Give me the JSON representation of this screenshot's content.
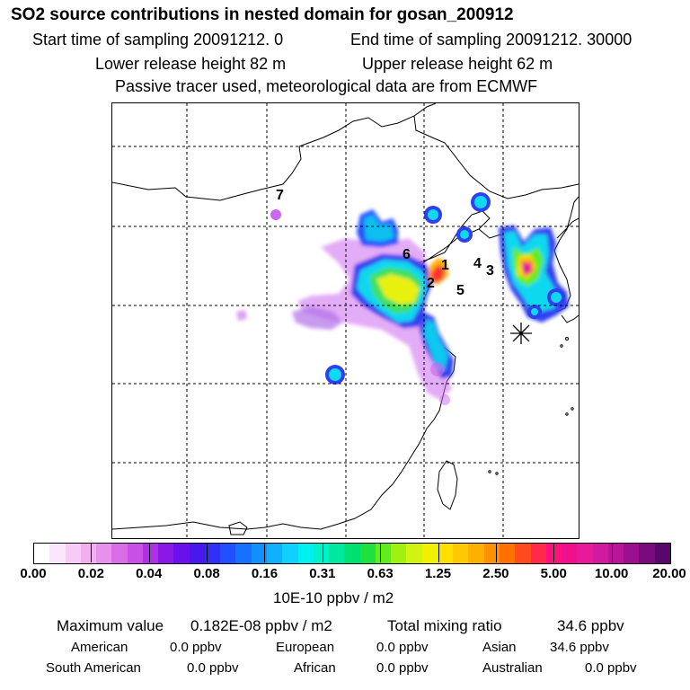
{
  "header": {
    "title": "SO2 source contributions in nested domain for gosan_200912",
    "start_time": "Start time of sampling 20091212.     0",
    "end_time": "End time of sampling 20091212. 30000",
    "lower_release": "Lower release height   82 m",
    "upper_release": "Upper release height   62 m",
    "tracer_note": "Passive tracer used, meteorological data are from ECMWF"
  },
  "chart_data": {
    "type": "heatmap",
    "title": "SO2 source contributions in nested domain for gosan_200912",
    "colorbar": {
      "unit": "10E-10 ppbv / m2",
      "tick_labels": [
        "0.00",
        "0.02",
        "0.04",
        "0.08",
        "0.16",
        "0.31",
        "0.63",
        "1.25",
        "2.50",
        "5.00",
        "10.00",
        "20.00"
      ],
      "colors": [
        "#ffffff",
        "#fbe6fb",
        "#f6ccf6",
        "#f0b0f0",
        "#e890ec",
        "#da6de6",
        "#c850e6",
        "#b030e8",
        "#8a18e6",
        "#6a10ea",
        "#4818ee",
        "#3030f6",
        "#2050ff",
        "#1870ff",
        "#1090ff",
        "#10b0ff",
        "#10d0ff",
        "#00f0f0",
        "#00f0c8",
        "#00e8a0",
        "#00e070",
        "#20e040",
        "#60ec20",
        "#a0f010",
        "#d0f410",
        "#f0f000",
        "#ffe000",
        "#ffc800",
        "#ffb000",
        "#ff9000",
        "#ff7000",
        "#ff4a20",
        "#ff2a4a",
        "#ff1080",
        "#f0108c",
        "#e81a9a",
        "#d01aa0",
        "#b8149c",
        "#9a1090",
        "#7a0a80",
        "#5a066a"
      ]
    },
    "source_regions": [
      "1",
      "2",
      "3",
      "4",
      "5",
      "6",
      "7"
    ],
    "receptor": "Gosan"
  },
  "stats": {
    "max_label": "Maximum value",
    "max_value": "0.182E-08 ppbv / m2",
    "total_label": "Total mixing ratio",
    "total_value": "34.6 ppbv",
    "american_label": "American",
    "american_value": "0.0 ppbv",
    "european_label": "European",
    "european_value": "0.0 ppbv",
    "asian_label": "Asian",
    "asian_value": "34.6 ppbv",
    "south_american_label": "South American",
    "south_american_value": "0.0 ppbv",
    "african_label": "African",
    "african_value": "0.0 ppbv",
    "australian_label": "Australian",
    "australian_value": "0.0 ppbv"
  }
}
